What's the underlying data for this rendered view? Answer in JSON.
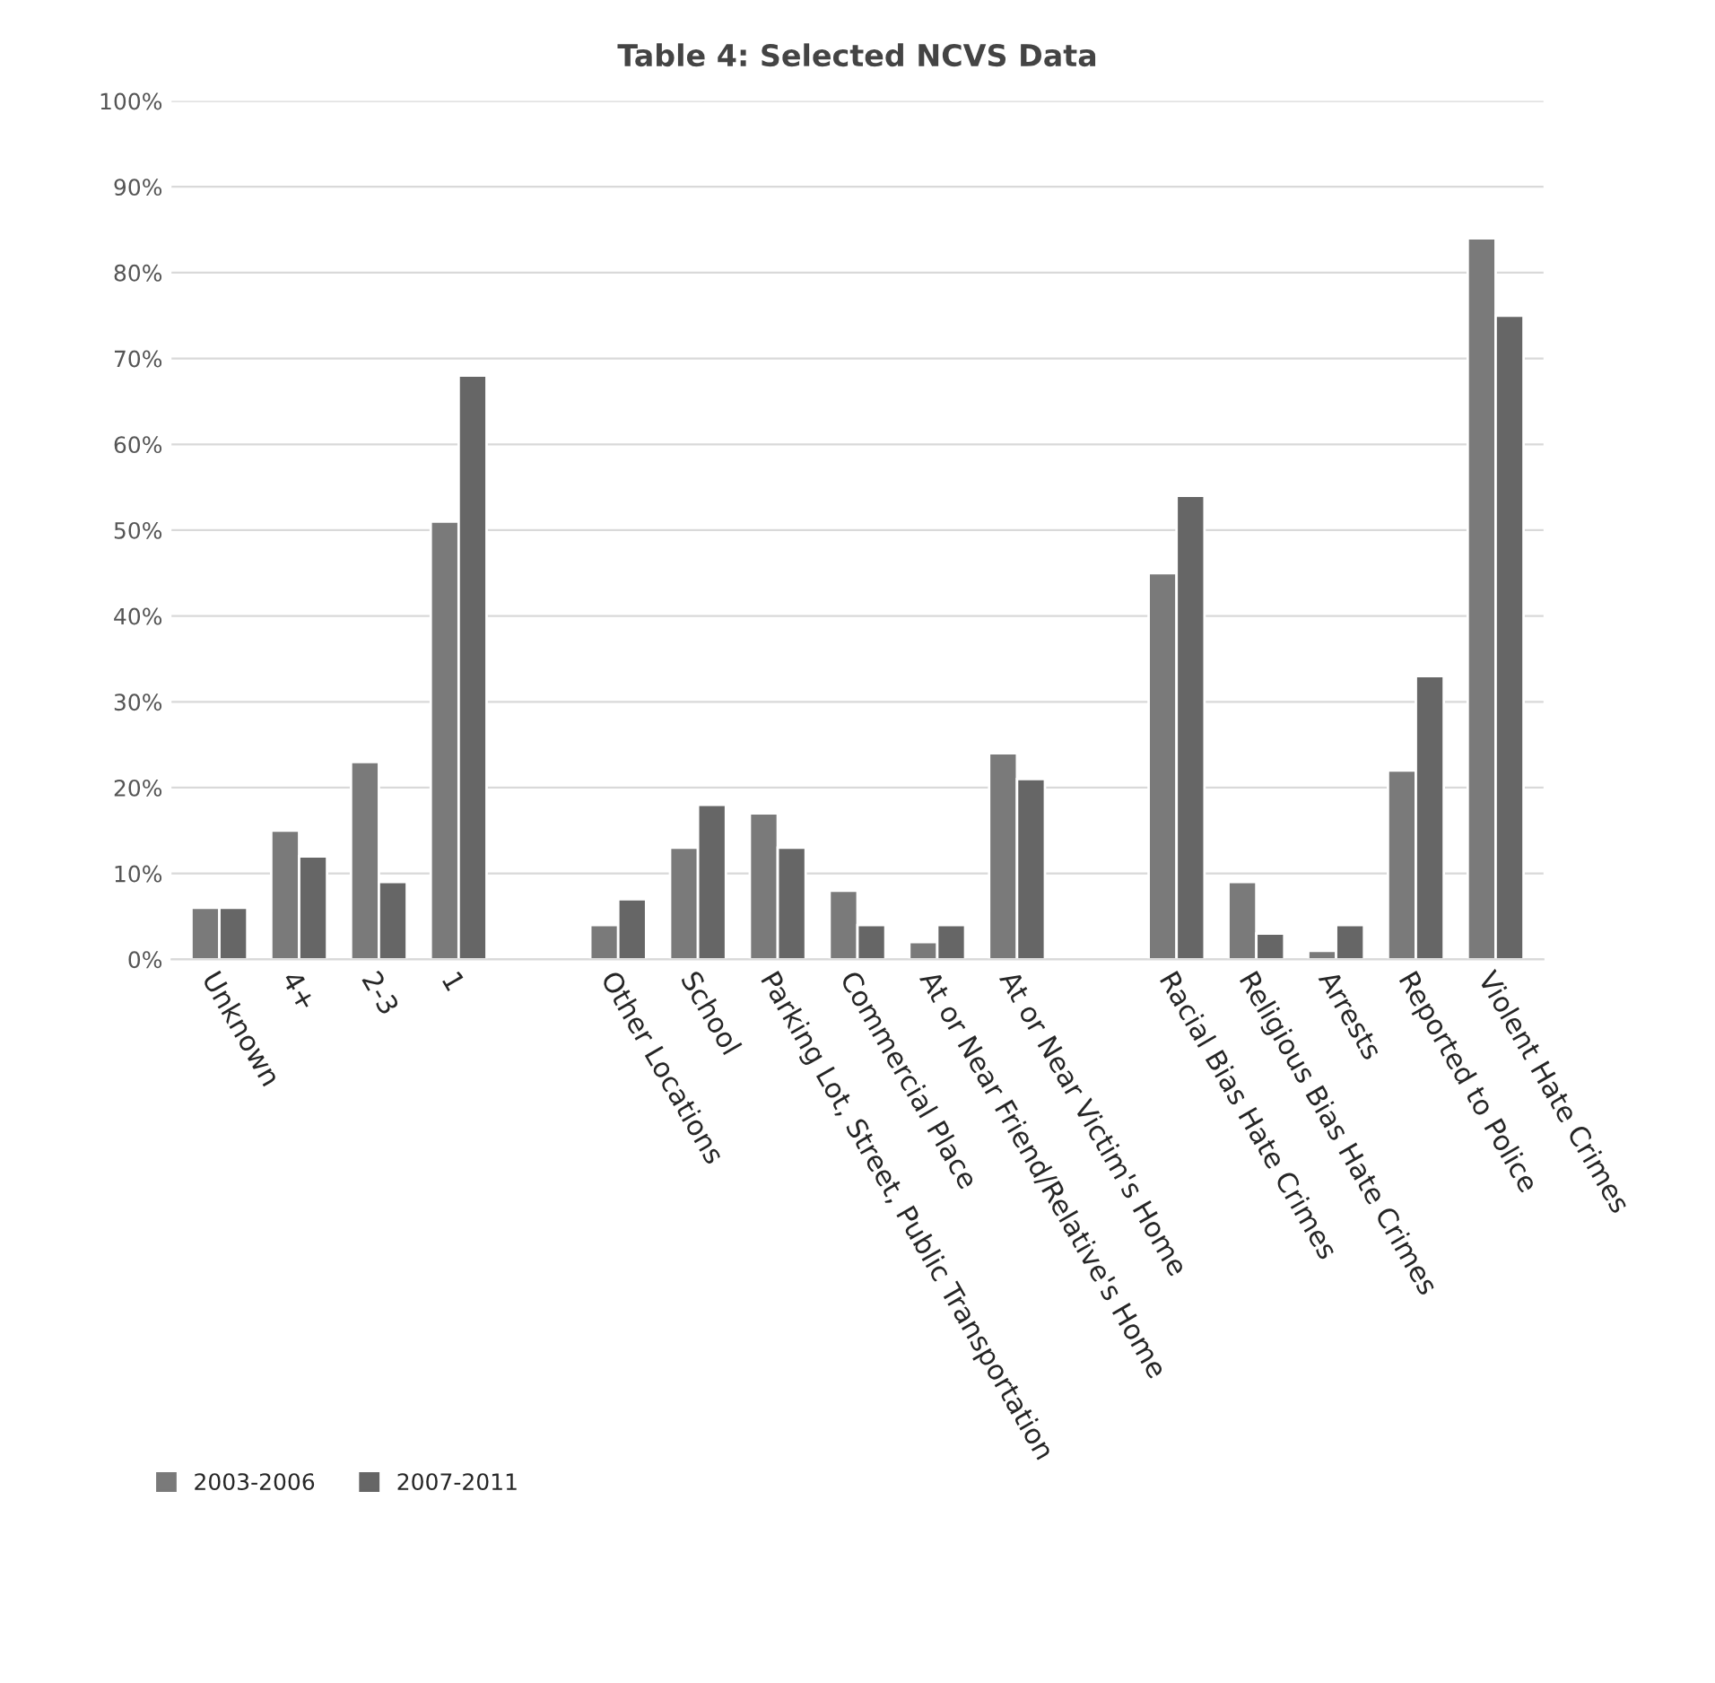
{
  "chart_data": {
    "type": "bar",
    "title": "Table 4: Selected NCVS Data",
    "categories": [
      "Unknown",
      "4+",
      "2-3",
      "1",
      null,
      "Other Locations",
      "School",
      "Parking Lot, Street, Public Transportation",
      "Commercial Place",
      "At or Near Friend/Relative's Home",
      "At or Near Victim's Home",
      null,
      "Racial Bias Hate Crimes",
      "Religious Bias Hate Crimes",
      "Arrests",
      "Reported to Police",
      "Violent Hate Crimes"
    ],
    "series": [
      {
        "name": "2003-2006",
        "color": "#7a7a7a",
        "values": [
          6,
          15,
          23,
          51,
          null,
          4,
          13,
          17,
          8,
          2,
          24,
          null,
          45,
          9,
          1,
          22,
          84
        ]
      },
      {
        "name": "2007-2011",
        "color": "#666666",
        "values": [
          6,
          12,
          9,
          68,
          null,
          7,
          18,
          13,
          4,
          4,
          21,
          null,
          54,
          3,
          4,
          33,
          75
        ]
      }
    ],
    "ylim": [
      0,
      100
    ],
    "yticks": [
      {
        "value": 0,
        "label": "0%"
      },
      {
        "value": 10,
        "label": "10%"
      },
      {
        "value": 20,
        "label": "20%"
      },
      {
        "value": 30,
        "label": "30%"
      },
      {
        "value": 40,
        "label": "40%"
      },
      {
        "value": 50,
        "label": "50%"
      },
      {
        "value": 60,
        "label": "60%"
      },
      {
        "value": 70,
        "label": "70%"
      },
      {
        "value": 80,
        "label": "80%"
      },
      {
        "value": 90,
        "label": "90%"
      },
      {
        "value": 100,
        "label": "100%"
      }
    ],
    "grid": "y",
    "legend": "bottom left"
  }
}
